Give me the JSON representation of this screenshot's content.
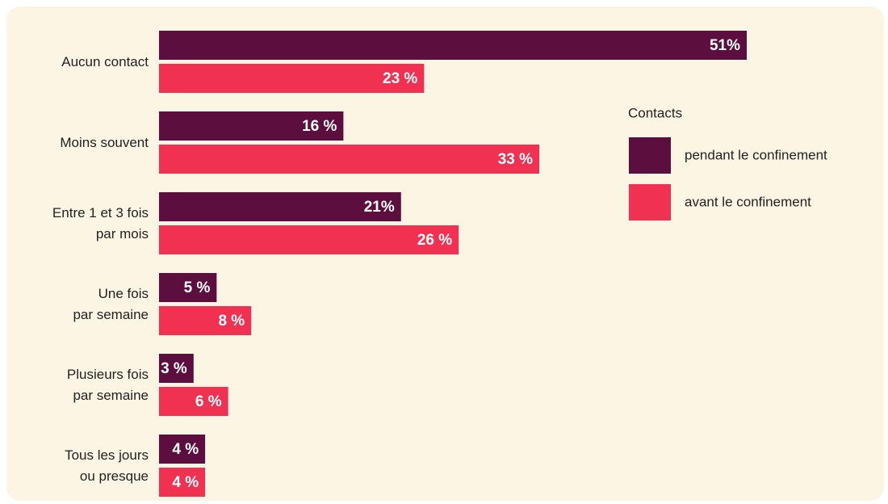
{
  "chart_data": {
    "type": "hbar",
    "categories": [
      "Aucun contact",
      "Moins souvent",
      "Entre 1 et 3 fois\npar mois",
      "Une fois\npar semaine",
      "Plusieurs fois\npar semaine",
      "Tous les jours\nou presque"
    ],
    "legend_title": "Contacts",
    "series": [
      {
        "name": "pendant le confinement",
        "color": "#5c0f3e",
        "values": [
          51,
          16,
          21,
          5,
          3,
          4
        ],
        "value_labels": [
          "51%",
          "16 %",
          "21%",
          "5 %",
          "3 %",
          "4 %"
        ]
      },
      {
        "name": "avant le confinement",
        "color": "#f03152",
        "values": [
          23,
          33,
          26,
          8,
          6,
          4
        ],
        "value_labels": [
          "23 %",
          "33 %",
          "26 %",
          "8 %",
          "6 %",
          "4 %"
        ]
      }
    ]
  }
}
